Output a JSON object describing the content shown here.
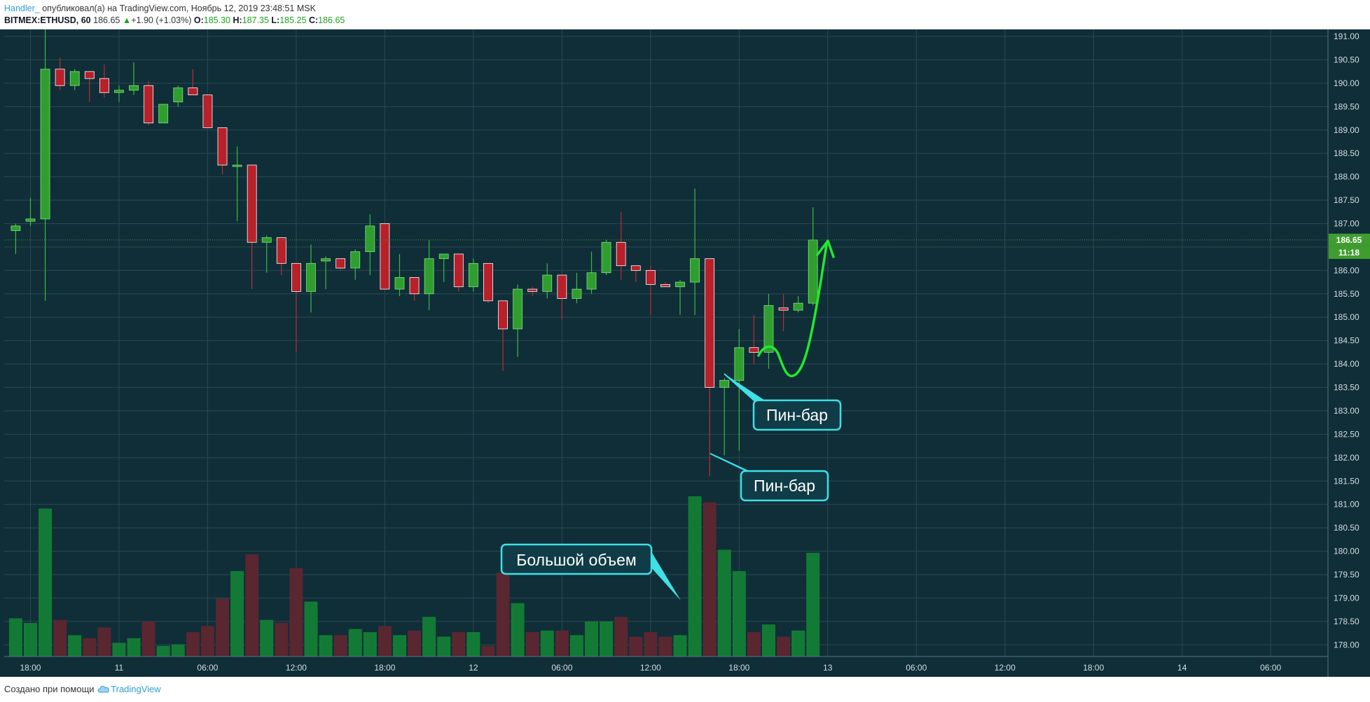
{
  "header": {
    "author": "Handler_",
    "published_text": "опубликовал(а) на TradingView.com, Ноябрь 12, 2019 23:48:51 MSK",
    "symbol": "BITMEX:ETHUSD, 60",
    "last": "186.65",
    "change_arrow": "▲",
    "change": "+1.90 (+1.03%)",
    "o_label": "O:",
    "o_value": "185.30",
    "h_label": "H:",
    "h_value": "187.35",
    "l_label": "L:",
    "l_value": "185.25",
    "c_label": "C:",
    "c_value": "186.65"
  },
  "footer": {
    "created_text": "Создано при помощи",
    "brand": "TradingView"
  },
  "colors": {
    "background": "#0f2e38",
    "grid": "#2a4a53",
    "up": "#2f9e2f",
    "down": "#b8202a",
    "up_volume": "#137a35",
    "down_volume": "#5a2630",
    "callout_border": "#3ee0e6",
    "callout_fill": "#0f3c46",
    "arrow": "#22e82f",
    "last_price_badge": "#3f9d2f"
  },
  "icons": [
    "tradingview-cloud-icon"
  ],
  "chart_data": {
    "type": "candlestick",
    "timeframe": "60",
    "ylim": [
      177.75,
      191.15
    ],
    "y_ticks": [
      "191.00",
      "190.50",
      "190.00",
      "189.50",
      "189.00",
      "188.50",
      "188.00",
      "187.50",
      "187.00",
      "186.50",
      "186.00",
      "185.50",
      "185.00",
      "184.50",
      "184.00",
      "183.50",
      "183.00",
      "182.50",
      "182.00",
      "181.50",
      "181.00",
      "180.50",
      "180.00",
      "179.50",
      "179.00",
      "178.50",
      "178.00"
    ],
    "x_ticks": [
      {
        "label": "18:00",
        "bar": 1
      },
      {
        "label": "11",
        "bar": 7
      },
      {
        "label": "06:00",
        "bar": 13
      },
      {
        "label": "12:00",
        "bar": 19
      },
      {
        "label": "18:00",
        "bar": 25
      },
      {
        "label": "12",
        "bar": 31
      },
      {
        "label": "06:00",
        "bar": 37
      },
      {
        "label": "12:00",
        "bar": 43
      },
      {
        "label": "18:00",
        "bar": 49
      },
      {
        "label": "13",
        "bar": 55
      },
      {
        "label": "06:00",
        "bar": 61
      },
      {
        "label": "12:00",
        "bar": 67
      },
      {
        "label": "18:00",
        "bar": 73
      },
      {
        "label": "14",
        "bar": 79
      },
      {
        "label": "06:00",
        "bar": 85
      }
    ],
    "last_price": "186.65",
    "countdown": "11:18",
    "volume_scale_max": 100,
    "candles": [
      {
        "o": 186.85,
        "h": 187.0,
        "l": 186.35,
        "c": 186.95,
        "v": 25
      },
      {
        "o": 187.05,
        "h": 187.55,
        "l": 186.95,
        "c": 187.1,
        "v": 22
      },
      {
        "o": 187.1,
        "h": 191.2,
        "l": 185.35,
        "c": 190.3,
        "v": 97
      },
      {
        "o": 190.3,
        "h": 190.55,
        "l": 189.85,
        "c": 189.95,
        "v": 24
      },
      {
        "o": 189.95,
        "h": 190.3,
        "l": 189.85,
        "c": 190.25,
        "v": 14
      },
      {
        "o": 190.25,
        "h": 190.25,
        "l": 189.6,
        "c": 190.1,
        "v": 12
      },
      {
        "o": 190.1,
        "h": 190.4,
        "l": 189.7,
        "c": 189.8,
        "v": 19
      },
      {
        "o": 189.8,
        "h": 189.95,
        "l": 189.6,
        "c": 189.85,
        "v": 9
      },
      {
        "o": 189.85,
        "h": 190.45,
        "l": 189.75,
        "c": 189.95,
        "v": 12
      },
      {
        "o": 189.95,
        "h": 190.05,
        "l": 189.1,
        "c": 189.15,
        "v": 23
      },
      {
        "o": 189.15,
        "h": 189.55,
        "l": 189.15,
        "c": 189.55,
        "v": 7
      },
      {
        "o": 189.6,
        "h": 189.95,
        "l": 189.5,
        "c": 189.9,
        "v": 8
      },
      {
        "o": 189.9,
        "h": 190.3,
        "l": 189.75,
        "c": 189.75,
        "v": 16
      },
      {
        "o": 189.75,
        "h": 189.75,
        "l": 189.05,
        "c": 189.05,
        "v": 20
      },
      {
        "o": 189.05,
        "h": 189.05,
        "l": 188.05,
        "c": 188.25,
        "v": 38
      },
      {
        "o": 188.25,
        "h": 188.65,
        "l": 187.05,
        "c": 188.25,
        "v": 56
      },
      {
        "o": 188.25,
        "h": 188.25,
        "l": 185.6,
        "c": 186.6,
        "v": 67
      },
      {
        "o": 186.6,
        "h": 186.75,
        "l": 185.95,
        "c": 186.7,
        "v": 24
      },
      {
        "o": 186.7,
        "h": 186.7,
        "l": 185.9,
        "c": 186.15,
        "v": 22
      },
      {
        "o": 186.15,
        "h": 186.15,
        "l": 184.25,
        "c": 185.55,
        "v": 58
      },
      {
        "o": 185.55,
        "h": 186.55,
        "l": 185.1,
        "c": 186.15,
        "v": 36
      },
      {
        "o": 186.2,
        "h": 186.3,
        "l": 185.6,
        "c": 186.25,
        "v": 14
      },
      {
        "o": 186.25,
        "h": 186.25,
        "l": 186.0,
        "c": 186.05,
        "v": 14
      },
      {
        "o": 186.05,
        "h": 186.45,
        "l": 185.8,
        "c": 186.4,
        "v": 18
      },
      {
        "o": 186.4,
        "h": 187.2,
        "l": 185.9,
        "c": 186.95,
        "v": 16
      },
      {
        "o": 187.0,
        "h": 187.0,
        "l": 185.6,
        "c": 185.6,
        "v": 20
      },
      {
        "o": 185.6,
        "h": 186.35,
        "l": 185.45,
        "c": 185.85,
        "v": 14
      },
      {
        "o": 185.85,
        "h": 185.85,
        "l": 185.35,
        "c": 185.5,
        "v": 17
      },
      {
        "o": 185.5,
        "h": 186.65,
        "l": 185.15,
        "c": 186.25,
        "v": 26
      },
      {
        "o": 186.25,
        "h": 186.35,
        "l": 185.75,
        "c": 186.35,
        "v": 13
      },
      {
        "o": 186.35,
        "h": 186.35,
        "l": 185.55,
        "c": 185.65,
        "v": 16
      },
      {
        "o": 185.65,
        "h": 186.25,
        "l": 185.55,
        "c": 186.15,
        "v": 16
      },
      {
        "o": 186.15,
        "h": 186.15,
        "l": 185.3,
        "c": 185.35,
        "v": 7
      },
      {
        "o": 185.35,
        "h": 185.35,
        "l": 183.85,
        "c": 184.75,
        "v": 55
      },
      {
        "o": 184.75,
        "h": 185.7,
        "l": 184.15,
        "c": 185.6,
        "v": 35
      },
      {
        "o": 185.6,
        "h": 185.65,
        "l": 185.45,
        "c": 185.55,
        "v": 16
      },
      {
        "o": 185.55,
        "h": 186.15,
        "l": 185.4,
        "c": 185.9,
        "v": 17
      },
      {
        "o": 185.9,
        "h": 185.9,
        "l": 184.95,
        "c": 185.4,
        "v": 17
      },
      {
        "o": 185.4,
        "h": 185.95,
        "l": 185.3,
        "c": 185.6,
        "v": 14
      },
      {
        "o": 185.6,
        "h": 186.4,
        "l": 185.5,
        "c": 185.95,
        "v": 23
      },
      {
        "o": 185.95,
        "h": 186.65,
        "l": 185.9,
        "c": 186.6,
        "v": 23
      },
      {
        "o": 186.6,
        "h": 187.25,
        "l": 185.8,
        "c": 186.1,
        "v": 26
      },
      {
        "o": 186.1,
        "h": 186.1,
        "l": 185.75,
        "c": 186.0,
        "v": 13
      },
      {
        "o": 186.0,
        "h": 186.1,
        "l": 185.05,
        "c": 185.7,
        "v": 16
      },
      {
        "o": 185.7,
        "h": 185.75,
        "l": 185.65,
        "c": 185.65,
        "v": 13
      },
      {
        "o": 185.65,
        "h": 185.8,
        "l": 185.05,
        "c": 185.75,
        "v": 14
      },
      {
        "o": 185.75,
        "h": 187.75,
        "l": 185.05,
        "c": 186.25,
        "v": 105
      },
      {
        "o": 186.25,
        "h": 186.25,
        "l": 181.6,
        "c": 183.5,
        "v": 101
      },
      {
        "o": 183.5,
        "h": 183.7,
        "l": 182.05,
        "c": 183.65,
        "v": 70
      },
      {
        "o": 183.65,
        "h": 184.75,
        "l": 182.15,
        "c": 184.35,
        "v": 56
      },
      {
        "o": 184.35,
        "h": 185.05,
        "l": 184.0,
        "c": 184.25,
        "v": 16
      },
      {
        "o": 184.25,
        "h": 185.5,
        "l": 183.9,
        "c": 185.25,
        "v": 21
      },
      {
        "o": 185.2,
        "h": 185.5,
        "l": 184.7,
        "c": 185.15,
        "v": 13
      },
      {
        "o": 185.15,
        "h": 185.45,
        "l": 185.1,
        "c": 185.3,
        "v": 17
      },
      {
        "o": 185.3,
        "h": 187.35,
        "l": 185.25,
        "c": 186.65,
        "v": 68
      }
    ],
    "annotations": [
      "Пин-бар",
      "Пин-бар",
      "Большой объем"
    ]
  }
}
